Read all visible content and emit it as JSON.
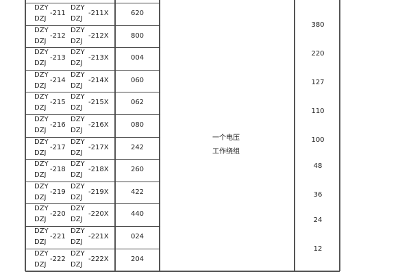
{
  "rows": [
    {
      "num": "-211",
      "model": "-211X",
      "code": "620"
    },
    {
      "num": "-212",
      "model": "-212X",
      "code": "800"
    },
    {
      "num": "-213",
      "model": "-213X",
      "code": "004"
    },
    {
      "num": "-214",
      "model": "-214X",
      "code": "060"
    },
    {
      "num": "-215",
      "model": "-215X",
      "code": "062"
    },
    {
      "num": "-216",
      "model": "-216X",
      "code": "080"
    },
    {
      "num": "-217",
      "model": "-217X",
      "code": "242"
    },
    {
      "num": "-218",
      "model": "-218X",
      "code": "260"
    },
    {
      "num": "-219",
      "model": "-219X",
      "code": "422"
    },
    {
      "num": "-220",
      "model": "-220X",
      "code": "440"
    },
    {
      "num": "-221",
      "model": "-221X",
      "code": "024"
    },
    {
      "num": "-222",
      "model": "-222X",
      "code": "204"
    }
  ],
  "prefix_top": "DZY",
  "prefix_bottom": "DZJ",
  "winding": {
    "line1": "一个电压",
    "line2": "工作绕组"
  },
  "voltages": [
    "380",
    "220",
    "127",
    "110",
    "100",
    "48",
    "36",
    "24",
    "12"
  ]
}
